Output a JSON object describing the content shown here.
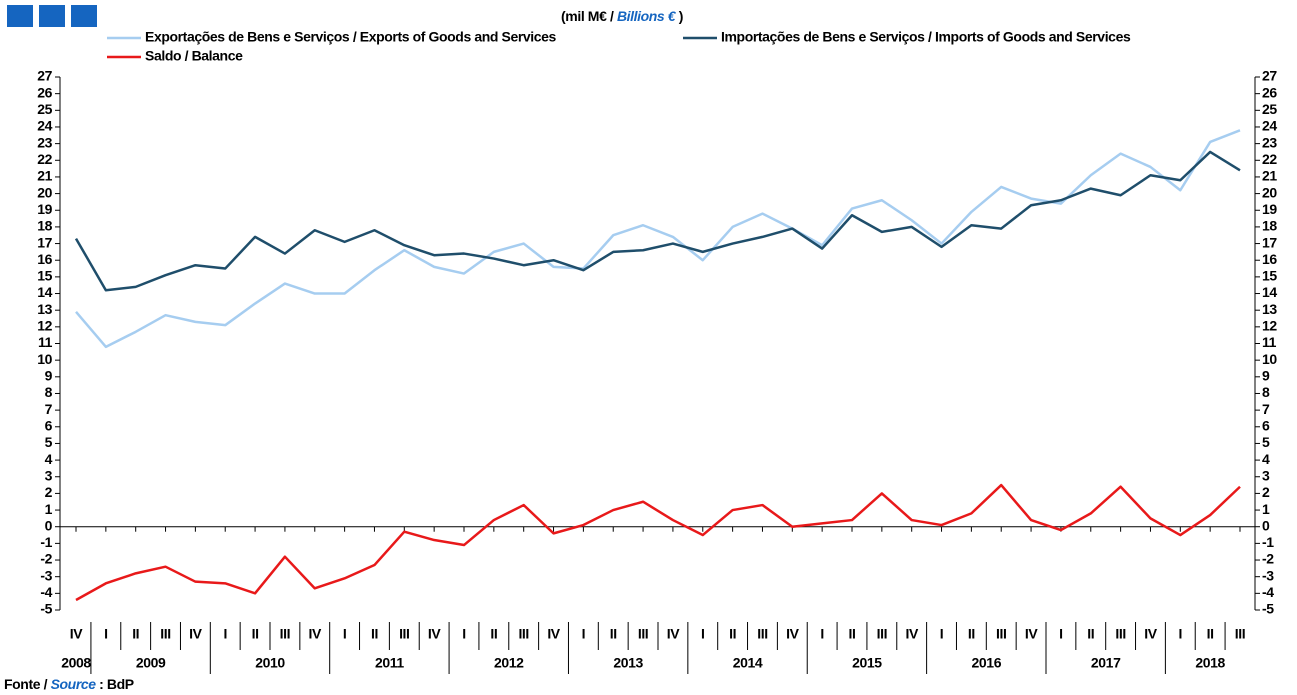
{
  "chart_data": {
    "type": "line",
    "subtitle_pt": "(mil M€ /",
    "subtitle_en": "Billions €",
    "subtitle_end": ")",
    "source_pt": "Fonte /",
    "source_en": "Source",
    "source_tail": ": BdP",
    "categories": [
      "IV",
      "I",
      "II",
      "III",
      "IV",
      "I",
      "II",
      "III",
      "IV",
      "I",
      "II",
      "III",
      "IV",
      "I",
      "II",
      "III",
      "IV",
      "I",
      "II",
      "III",
      "IV",
      "I",
      "II",
      "III",
      "IV",
      "I",
      "II",
      "III",
      "IV",
      "I",
      "II",
      "III",
      "IV",
      "I",
      "II",
      "III",
      "IV",
      "I",
      "II",
      "III"
    ],
    "years": [
      "2008",
      "2009",
      "2010",
      "2011",
      "2012",
      "2013",
      "2014",
      "2015",
      "2016",
      "2017",
      "2018"
    ],
    "series": [
      {
        "name": "Exportações de Bens e Serviços / Exports of Goods and Services",
        "color": "#a6cdf0",
        "values": [
          12.9,
          10.8,
          11.7,
          12.7,
          12.3,
          12.1,
          13.4,
          14.6,
          14.0,
          14.0,
          15.4,
          16.6,
          15.6,
          15.2,
          16.5,
          17.0,
          15.6,
          15.5,
          17.5,
          18.1,
          17.4,
          16.0,
          18.0,
          18.8,
          17.9,
          16.9,
          19.1,
          19.6,
          18.4,
          17.0,
          18.9,
          20.4,
          19.7,
          19.4,
          21.1,
          22.4,
          21.6,
          20.2,
          23.1,
          23.8
        ]
      },
      {
        "name": "Importações de Bens e Serviços / Imports of Goods and Services",
        "color": "#1f4e6b",
        "values": [
          17.3,
          14.2,
          14.4,
          15.1,
          15.7,
          15.5,
          17.4,
          16.4,
          17.8,
          17.1,
          17.8,
          16.9,
          16.3,
          16.4,
          16.1,
          15.7,
          16.0,
          15.4,
          16.5,
          16.6,
          17.0,
          16.5,
          17.0,
          17.4,
          17.9,
          16.7,
          18.7,
          17.7,
          18.0,
          16.8,
          18.1,
          17.9,
          19.3,
          19.6,
          20.3,
          19.9,
          21.1,
          20.8,
          22.5,
          21.4
        ]
      },
      {
        "name": "Saldo / Balance",
        "color": "#e8191a",
        "values": [
          -4.4,
          -3.4,
          -2.8,
          -2.4,
          -3.3,
          -3.4,
          -4.0,
          -1.8,
          -3.7,
          -3.1,
          -2.3,
          -0.3,
          -0.8,
          -1.1,
          0.4,
          1.3,
          -0.4,
          0.1,
          1.0,
          1.5,
          0.4,
          -0.5,
          1.0,
          1.3,
          0.0,
          0.2,
          0.4,
          2.0,
          0.4,
          0.1,
          0.8,
          2.5,
          0.4,
          -0.2,
          0.8,
          2.4,
          0.5,
          -0.5,
          0.7,
          2.4
        ]
      }
    ],
    "ylim": [
      -5,
      27
    ],
    "yticks": [
      -5,
      -4,
      -3,
      -2,
      -1,
      0,
      1,
      2,
      3,
      4,
      5,
      6,
      7,
      8,
      9,
      10,
      11,
      12,
      13,
      14,
      15,
      16,
      17,
      18,
      19,
      20,
      21,
      22,
      23,
      24,
      25,
      26,
      27
    ],
    "y2lim": [
      -5,
      27
    ],
    "y2ticks": [
      -5,
      -4,
      -3,
      -2,
      -1,
      0,
      1,
      2,
      3,
      4,
      5,
      6,
      7,
      8,
      9,
      10,
      11,
      12,
      13,
      14,
      15,
      16,
      17,
      18,
      19,
      20,
      21,
      22,
      23,
      24,
      25,
      26,
      27
    ],
    "grid": false
  }
}
